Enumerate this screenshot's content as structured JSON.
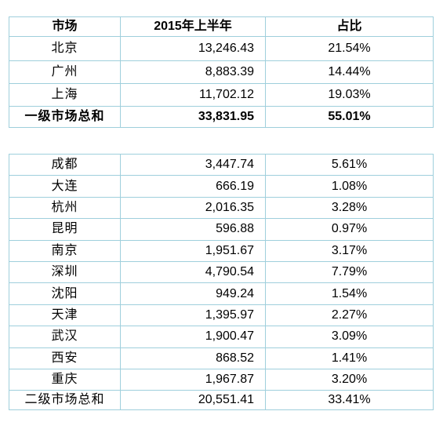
{
  "header": {
    "market": "市场",
    "amount": "2015年上半年",
    "share": "占比"
  },
  "tier1": {
    "rows": [
      {
        "market": "北京",
        "amount": "13,246.43",
        "share": "21.54%"
      },
      {
        "market": "广州",
        "amount": "8,883.39",
        "share": "14.44%"
      },
      {
        "market": "上海",
        "amount": "11,702.12",
        "share": "19.03%"
      }
    ],
    "total": {
      "market": "一级市场总和",
      "amount": "33,831.95",
      "share": "55.01%"
    }
  },
  "tier2": {
    "rows": [
      {
        "market": "成都",
        "amount": "3,447.74",
        "share": "5.61%"
      },
      {
        "market": "大连",
        "amount": "666.19",
        "share": "1.08%"
      },
      {
        "market": "杭州",
        "amount": "2,016.35",
        "share": "3.28%"
      },
      {
        "market": "昆明",
        "amount": "596.88",
        "share": "0.97%"
      },
      {
        "market": "南京",
        "amount": "1,951.67",
        "share": "3.17%"
      },
      {
        "market": "深圳",
        "amount": "4,790.54",
        "share": "7.79%"
      },
      {
        "market": "沈阳",
        "amount": "949.24",
        "share": "1.54%"
      },
      {
        "market": "天津",
        "amount": "1,395.97",
        "share": "2.27%"
      },
      {
        "market": "武汉",
        "amount": "1,900.47",
        "share": "3.09%"
      },
      {
        "market": "西安",
        "amount": "868.52",
        "share": "1.41%"
      },
      {
        "market": "重庆",
        "amount": "1,967.87",
        "share": "3.20%"
      }
    ],
    "total": {
      "market": "二级市场总和",
      "amount": "20,551.41",
      "share": "33.41%"
    }
  }
}
